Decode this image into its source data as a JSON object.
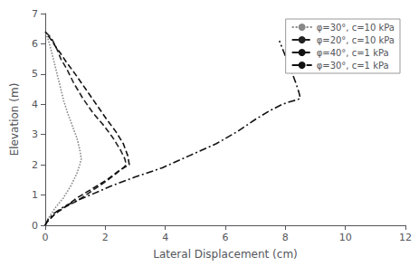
{
  "chart_data": {
    "type": "line",
    "xlabel": "Lateral Displacement (cm)",
    "ylabel": "Elevation (m)",
    "xlim": [
      0,
      12
    ],
    "ylim": [
      0,
      7
    ],
    "xticks": [
      0,
      2,
      4,
      6,
      8,
      10,
      12
    ],
    "yticks": [
      0,
      1,
      2,
      3,
      4,
      5,
      6,
      7
    ],
    "grid": false,
    "legend": "upper right",
    "series": [
      {
        "name": "φ=30°, c=10 kPa",
        "color": "#888888",
        "line_style": "dotted",
        "x": [
          0.0,
          0.05,
          0.15,
          0.35,
          0.6,
          0.85,
          1.05,
          1.15,
          1.2,
          1.15,
          1.05,
          0.9,
          0.75,
          0.62,
          0.52,
          0.42,
          0.32,
          0.22,
          0.14,
          0.08,
          0.04,
          0.0
        ],
        "values": [
          0.0,
          0.15,
          0.3,
          0.6,
          0.9,
          1.3,
          1.7,
          2.0,
          2.2,
          2.5,
          2.9,
          3.3,
          3.7,
          4.1,
          4.5,
          4.9,
          5.3,
          5.7,
          6.0,
          6.2,
          6.3,
          6.4
        ]
      },
      {
        "name": "φ=20°, c=10 kPa",
        "color": "#222222",
        "line_style": "dashed",
        "x": [
          0.0,
          0.05,
          0.15,
          0.35,
          0.65,
          1.05,
          1.5,
          1.95,
          2.35,
          2.6,
          2.7,
          2.65,
          2.5,
          2.25,
          1.95,
          1.6,
          1.25,
          0.95,
          0.7,
          0.52,
          0.4,
          0.3,
          0.2,
          0.0
        ],
        "values": [
          0.0,
          0.1,
          0.2,
          0.4,
          0.6,
          0.8,
          1.1,
          1.4,
          1.7,
          1.9,
          2.0,
          2.2,
          2.5,
          2.9,
          3.3,
          3.7,
          4.2,
          4.7,
          5.2,
          5.5,
          5.8,
          6.0,
          6.2,
          6.4
        ]
      },
      {
        "name": "φ=40°, c=1 kPa",
        "color": "#111111",
        "line_style": "dashed",
        "x": [
          0.0,
          0.05,
          0.15,
          0.35,
          0.65,
          1.05,
          1.55,
          2.05,
          2.45,
          2.7,
          2.8,
          2.75,
          2.6,
          2.35,
          2.05,
          1.7,
          1.35,
          1.0,
          0.7,
          0.5,
          0.35,
          0.22,
          0.0
        ],
        "values": [
          0.0,
          0.1,
          0.2,
          0.4,
          0.6,
          0.9,
          1.2,
          1.5,
          1.8,
          1.95,
          2.0,
          2.3,
          2.7,
          3.1,
          3.5,
          4.0,
          4.5,
          5.0,
          5.4,
          5.7,
          5.9,
          6.1,
          6.4
        ]
      },
      {
        "name": "φ=30°, c=1 kPa",
        "color": "#111111",
        "line_style": "dashdot",
        "x": [
          0.0,
          0.1,
          0.3,
          0.6,
          1.0,
          1.5,
          2.2,
          3.0,
          3.9,
          4.8,
          5.7,
          6.4,
          7.0,
          7.5,
          7.9,
          8.2,
          8.4,
          8.5,
          8.45,
          8.35,
          8.2,
          8.0,
          7.8
        ],
        "values": [
          0.0,
          0.2,
          0.4,
          0.6,
          0.8,
          1.0,
          1.3,
          1.6,
          1.9,
          2.3,
          2.7,
          3.1,
          3.5,
          3.8,
          4.0,
          4.1,
          4.15,
          4.2,
          4.4,
          4.7,
          5.1,
          5.6,
          6.1
        ]
      }
    ]
  }
}
